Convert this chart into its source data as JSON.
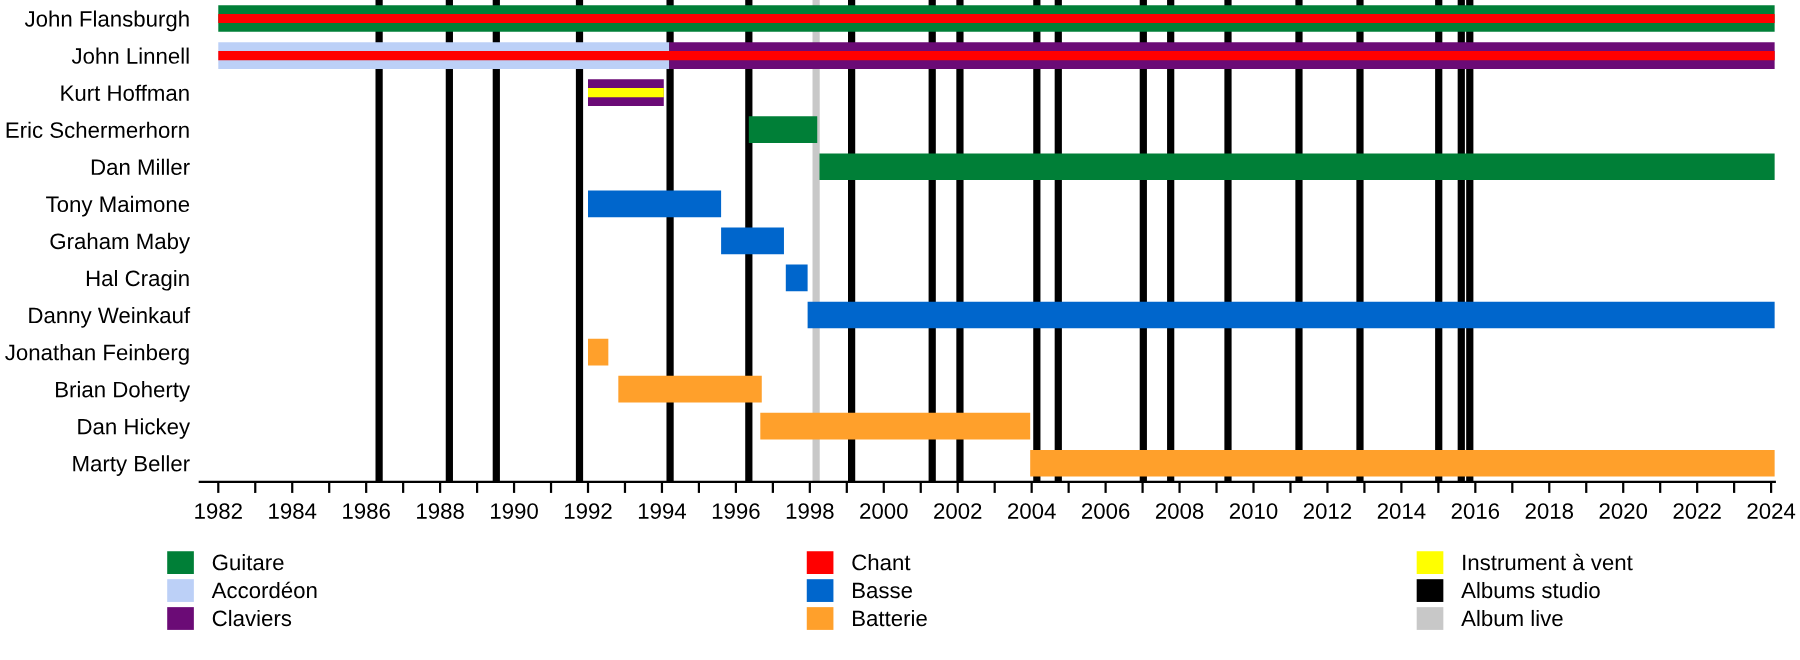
{
  "chart_data": {
    "type": "bar",
    "orientation": "horizontal",
    "categories": [
      "John Flansburgh",
      "John Linnell",
      "Kurt Hoffman",
      "Eric Schermerhorn",
      "Dan Miller",
      "Tony Maimone",
      "Graham Maby",
      "Hal Cragin",
      "Danny Weinkauf",
      "Jonathan Feinberg",
      "Brian Doherty",
      "Dan Hickey",
      "Marty Beller"
    ],
    "series": [
      {
        "name": "Guitare",
        "color": "#007f37",
        "base": [
          1982,
          null,
          null,
          1996.35,
          1998.26,
          null,
          null,
          null,
          null,
          null,
          null,
          null,
          null
        ],
        "values": [
          42.1,
          null,
          null,
          1.85,
          25.84,
          null,
          null,
          null,
          null,
          null,
          null,
          null,
          null
        ]
      },
      {
        "name": "Accordéon",
        "color": "#bcd0f7",
        "base": [
          null,
          1982,
          null,
          null,
          null,
          null,
          null,
          null,
          null,
          null,
          null,
          null,
          null
        ],
        "values": [
          null,
          12.2,
          null,
          null,
          null,
          null,
          null,
          null,
          null,
          null,
          null,
          null,
          null
        ]
      },
      {
        "name": "Claviers",
        "color": "#6b0b76",
        "base": [
          null,
          1994.2,
          1992.0,
          null,
          null,
          null,
          null,
          null,
          null,
          null,
          null,
          null,
          null
        ],
        "values": [
          null,
          29.9,
          2.05,
          null,
          null,
          null,
          null,
          null,
          null,
          null,
          null,
          null,
          null
        ]
      },
      {
        "name": "Chant",
        "color": "#ff0000",
        "base": [
          1982,
          1982,
          null,
          null,
          null,
          null,
          null,
          null,
          null,
          null,
          null,
          null,
          null
        ],
        "values": [
          42.1,
          42.1,
          null,
          null,
          null,
          null,
          null,
          null,
          null,
          null,
          null,
          null,
          null
        ]
      },
      {
        "name": "Basse",
        "color": "#0066cc",
        "base": [
          null,
          null,
          null,
          null,
          null,
          1992.0,
          1995.6,
          1997.35,
          1997.94,
          null,
          null,
          null,
          null
        ],
        "values": [
          null,
          null,
          null,
          null,
          null,
          3.6,
          1.7,
          0.59,
          26.16,
          null,
          null,
          null,
          null
        ]
      },
      {
        "name": "Batterie",
        "color": "#ffa02b",
        "base": [
          null,
          null,
          null,
          null,
          null,
          null,
          null,
          null,
          null,
          1992.0,
          1992.82,
          1996.66,
          2003.96
        ],
        "values": [
          null,
          null,
          null,
          null,
          null,
          null,
          null,
          null,
          null,
          0.55,
          3.88,
          7.3,
          20.14
        ]
      },
      {
        "name": "Instrument à vent",
        "color": "#ffff00",
        "base": [
          null,
          null,
          1992.0,
          null,
          null,
          null,
          null,
          null,
          null,
          null,
          null,
          null,
          null
        ],
        "values": [
          null,
          null,
          2.05,
          null,
          null,
          null,
          null,
          null,
          null,
          null,
          null,
          null,
          null
        ]
      }
    ],
    "ref_lines": [
      {
        "axis": "x",
        "value": 1986.35,
        "color": "#000000",
        "label": "Albums studio"
      },
      {
        "axis": "x",
        "value": 1988.25,
        "color": "#000000"
      },
      {
        "axis": "x",
        "value": 1989.52,
        "color": "#000000"
      },
      {
        "axis": "x",
        "value": 1991.77,
        "color": "#000000"
      },
      {
        "axis": "x",
        "value": 1994.22,
        "color": "#000000"
      },
      {
        "axis": "x",
        "value": 1996.35,
        "color": "#000000"
      },
      {
        "axis": "x",
        "value": 1999.13,
        "color": "#000000"
      },
      {
        "axis": "x",
        "value": 2001.31,
        "color": "#000000"
      },
      {
        "axis": "x",
        "value": 2002.06,
        "color": "#000000"
      },
      {
        "axis": "x",
        "value": 2004.14,
        "color": "#000000"
      },
      {
        "axis": "x",
        "value": 2004.72,
        "color": "#000000"
      },
      {
        "axis": "x",
        "value": 2007.02,
        "color": "#000000"
      },
      {
        "axis": "x",
        "value": 2007.76,
        "color": "#000000"
      },
      {
        "axis": "x",
        "value": 2009.31,
        "color": "#000000"
      },
      {
        "axis": "x",
        "value": 2011.23,
        "color": "#000000"
      },
      {
        "axis": "x",
        "value": 2012.88,
        "color": "#000000"
      },
      {
        "axis": "x",
        "value": 2015.01,
        "color": "#000000"
      },
      {
        "axis": "x",
        "value": 2015.62,
        "color": "#000000"
      },
      {
        "axis": "x",
        "value": 2015.85,
        "color": "#000000"
      },
      {
        "axis": "x",
        "value": 1998.17,
        "color": "#c8c8c8",
        "label": "Album live"
      }
    ],
    "xlim": [
      1981.5,
      2024.1
    ],
    "xticks": [
      1982,
      {
        "value": 1983,
        "label": null
      },
      1984,
      {
        "value": 1985,
        "label": null
      },
      1986,
      {
        "value": 1987,
        "label": null
      },
      1988,
      {
        "value": 1989,
        "label": null
      },
      1990,
      {
        "value": 1991,
        "label": null
      },
      1992,
      {
        "value": 1993,
        "label": null
      },
      1994,
      {
        "value": 1995,
        "label": null
      },
      1996,
      {
        "value": 1997,
        "label": null
      },
      1998,
      {
        "value": 1999,
        "label": null
      },
      2000,
      {
        "value": 2001,
        "label": null
      },
      2002,
      {
        "value": 2003,
        "label": null
      },
      2004,
      {
        "value": 2005,
        "label": null
      },
      2006,
      {
        "value": 2007,
        "label": null
      },
      2008,
      {
        "value": 2009,
        "label": null
      },
      2010,
      {
        "value": 2011,
        "label": null
      },
      2012,
      {
        "value": 2013,
        "label": null
      },
      2014,
      {
        "value": 2015,
        "label": null
      },
      2016,
      {
        "value": 2017,
        "label": null
      },
      2018,
      {
        "value": 2019,
        "label": null
      },
      2020,
      {
        "value": 2021,
        "label": null
      },
      2022,
      {
        "value": 2023,
        "label": null
      },
      2024
    ],
    "grid": false,
    "legend": "bottom"
  }
}
